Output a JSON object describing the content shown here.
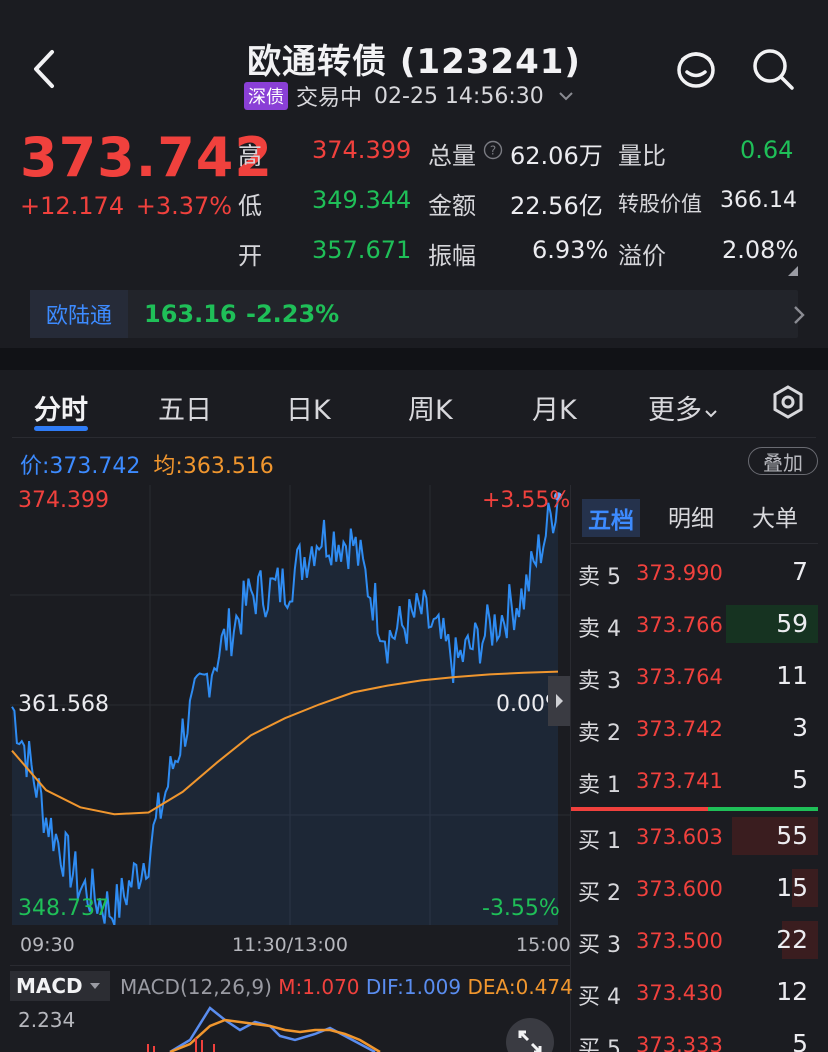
{
  "header": {
    "title": "欧通转债 (123241)",
    "badge": "深债",
    "status": "交易中",
    "datetime": "02-25 14:56:30"
  },
  "quote": {
    "price": "373.742",
    "change": "+12.174",
    "change_pct": "+3.37%",
    "high_label": "高",
    "high": "374.399",
    "low_label": "低",
    "low": "349.344",
    "open_label": "开",
    "open": "357.671",
    "volume_label": "总量",
    "volume": "62.06万",
    "amount_label": "金额",
    "amount": "22.56亿",
    "amplitude_label": "振幅",
    "amplitude": "6.93%",
    "vol_ratio_label": "量比",
    "vol_ratio": "0.64",
    "conv_value_label": "转股价值",
    "conv_value": "366.14",
    "premium_label": "溢价",
    "premium": "2.08%"
  },
  "underlying": {
    "name": "欧陆通",
    "price": "163.16",
    "change_pct": "-2.23%"
  },
  "tabs": [
    "分时",
    "五日",
    "日K",
    "周K",
    "月K",
    "更多"
  ],
  "price_bar": {
    "price_label": "价:",
    "price": "373.742",
    "avg_label": "均:",
    "avg": "363.516",
    "overlay_label": "叠加"
  },
  "chart_axis": {
    "y_top": "374.399",
    "y_mid": "361.568",
    "y_bottom": "348.737",
    "pct_top": "+3.55%",
    "pct_mid": "0.00%",
    "pct_bottom": "-3.55%",
    "x_start": "09:30",
    "x_mid": "11:30/13:00",
    "x_end": "15:00"
  },
  "chart_data": {
    "type": "line",
    "xlabel": "",
    "ylabel": "",
    "ylim": [
      348.737,
      374.399
    ],
    "x": [
      "09:30",
      "09:45",
      "10:00",
      "10:15",
      "10:30",
      "10:45",
      "11:00",
      "11:15",
      "11:30/13:00",
      "13:15",
      "13:30",
      "13:45",
      "14:00",
      "14:15",
      "14:30",
      "14:45",
      "14:56"
    ],
    "series": [
      {
        "name": "价",
        "color": "#2f8cf2",
        "values": [
          361.5,
          355.0,
          351.0,
          349.5,
          353.0,
          360.0,
          364.5,
          368.0,
          368.5,
          371.5,
          371.0,
          365.5,
          367.0,
          364.0,
          366.0,
          368.0,
          373.742
        ]
      },
      {
        "name": "均",
        "color": "#f0962e",
        "values": [
          358.9,
          356.6,
          355.6,
          355.2,
          355.3,
          356.5,
          358.2,
          359.8,
          360.8,
          361.6,
          362.3,
          362.7,
          363.0,
          363.2,
          363.35,
          363.45,
          363.516
        ]
      }
    ]
  },
  "orderbook": {
    "tabs": [
      "五档",
      "明细",
      "大单"
    ],
    "asks": [
      {
        "label": "卖 5",
        "price": "373.990",
        "vol": "7"
      },
      {
        "label": "卖 4",
        "price": "373.766",
        "vol": "59"
      },
      {
        "label": "卖 3",
        "price": "373.764",
        "vol": "11"
      },
      {
        "label": "卖 2",
        "price": "373.742",
        "vol": "3"
      },
      {
        "label": "卖 1",
        "price": "373.741",
        "vol": "5"
      }
    ],
    "bids": [
      {
        "label": "买 1",
        "price": "373.603",
        "vol": "55"
      },
      {
        "label": "买 2",
        "price": "373.600",
        "vol": "15"
      },
      {
        "label": "买 3",
        "price": "373.500",
        "vol": "22"
      },
      {
        "label": "买 4",
        "price": "373.430",
        "vol": "12"
      },
      {
        "label": "买 5",
        "price": "373.333",
        "vol": "5"
      }
    ]
  },
  "macd": {
    "tag": "MACD",
    "params": "MACD(12,26,9)",
    "m": "M:1.070",
    "dif": "DIF:1.009",
    "dea": "DEA:0.474",
    "top_value": "2.234"
  },
  "colors": {
    "up": "#f0413d",
    "down": "#1fbf58",
    "accent": "#2f7cf6",
    "avg": "#f0962e"
  }
}
